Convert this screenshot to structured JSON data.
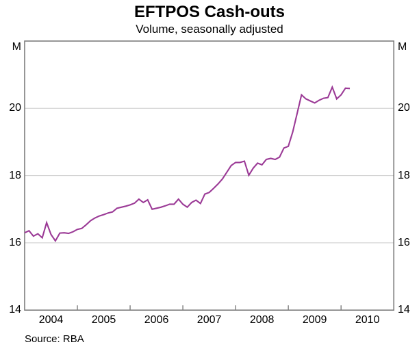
{
  "header": {
    "title": "EFTPOS Cash-outs",
    "subtitle": "Volume, seasonally adjusted"
  },
  "footer": {
    "source": "Source: RBA"
  },
  "axes": {
    "unit_left": "M",
    "unit_right": "M"
  },
  "chart_data": {
    "type": "line",
    "title": "EFTPOS Cash-outs",
    "subtitle": "Volume, seasonally adjusted",
    "ylabel": "M",
    "unit": "M",
    "source": "Source: RBA",
    "ylim": [
      14,
      22
    ],
    "y_tick_labels": [
      14,
      16,
      18,
      20
    ],
    "gridlines_y": [
      16,
      18,
      20
    ],
    "xlim": [
      2004,
      2011
    ],
    "x_tick_years": [
      2005,
      2006,
      2007,
      2008,
      2009,
      2010
    ],
    "x_year_labels": [
      "2004",
      "2005",
      "2006",
      "2007",
      "2008",
      "2009",
      "2010"
    ],
    "grid_on": true,
    "legend": "none",
    "line_color": "#9B3A96",
    "frame_color": "#7D7D7D",
    "gridline_color": "#CBCBCB",
    "series": [
      {
        "name": "EFTPOS cash-out volumes (millions), seasonally adjusted",
        "frequency": "monthly",
        "start_year": 2004,
        "start_month": 1,
        "values": [
          16.3,
          16.36,
          16.2,
          16.27,
          16.15,
          16.6,
          16.25,
          16.06,
          16.29,
          16.3,
          16.28,
          16.33,
          16.4,
          16.43,
          16.54,
          16.66,
          16.74,
          16.8,
          16.84,
          16.89,
          16.92,
          17.03,
          17.06,
          17.09,
          17.13,
          17.18,
          17.3,
          17.2,
          17.28,
          17.0,
          17.03,
          17.06,
          17.1,
          17.15,
          17.15,
          17.3,
          17.15,
          17.06,
          17.2,
          17.27,
          17.17,
          17.45,
          17.5,
          17.62,
          17.75,
          17.9,
          18.1,
          18.3,
          18.39,
          18.39,
          18.43,
          18.01,
          18.22,
          18.37,
          18.32,
          18.48,
          18.51,
          18.48,
          18.55,
          18.82,
          18.87,
          19.3,
          19.85,
          20.4,
          20.28,
          20.22,
          20.16,
          20.24,
          20.3,
          20.32,
          20.63,
          20.28,
          20.4,
          20.6,
          20.59
        ]
      }
    ]
  }
}
